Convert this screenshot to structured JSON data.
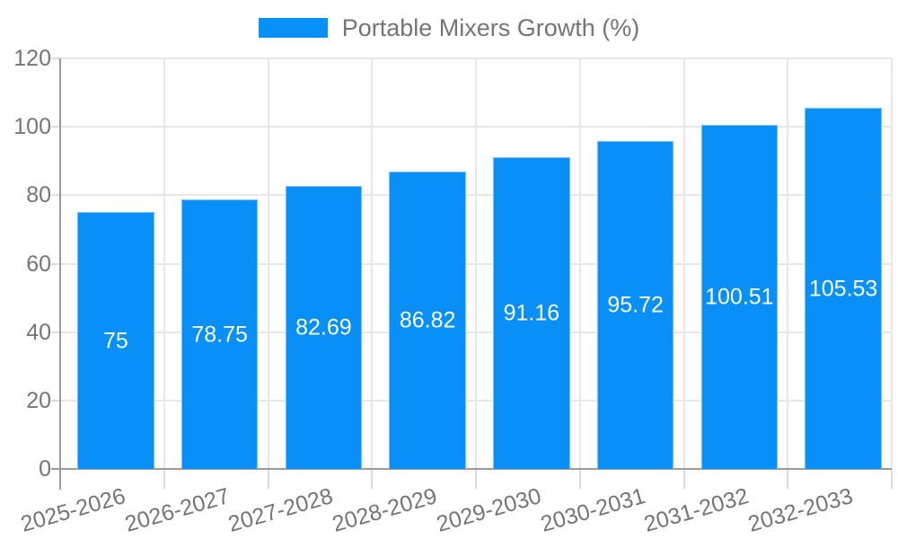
{
  "chart_data": {
    "type": "bar",
    "title": "Portable Mixers Growth (%)",
    "legend": {
      "label": "Portable Mixers Growth (%)",
      "position": "top"
    },
    "categories": [
      "2025-2026",
      "2026-2027",
      "2027-2028",
      "2028-2029",
      "2029-2030",
      "2030-2031",
      "2031-2032",
      "2032-2033"
    ],
    "series": [
      {
        "name": "Portable Mixers Growth (%)",
        "values": [
          75,
          78.75,
          82.69,
          86.82,
          91.16,
          95.72,
          100.51,
          105.53
        ],
        "value_labels": [
          "75",
          "78.75",
          "82.69",
          "86.82",
          "91.16",
          "95.72",
          "100.51",
          "105.53"
        ]
      }
    ],
    "xlabel": "",
    "ylabel": "",
    "ylim": [
      0,
      120
    ],
    "yticks": [
      "0",
      "20",
      "40",
      "60",
      "80",
      "100",
      "120"
    ],
    "grid": "on",
    "colors": {
      "bar": "#0890f8",
      "axis": "#9a9a9a",
      "gridline": "#e7e7e7",
      "tick_text": "#757575",
      "bar_value_text": "#ffffff",
      "background": "#ffffff"
    }
  }
}
